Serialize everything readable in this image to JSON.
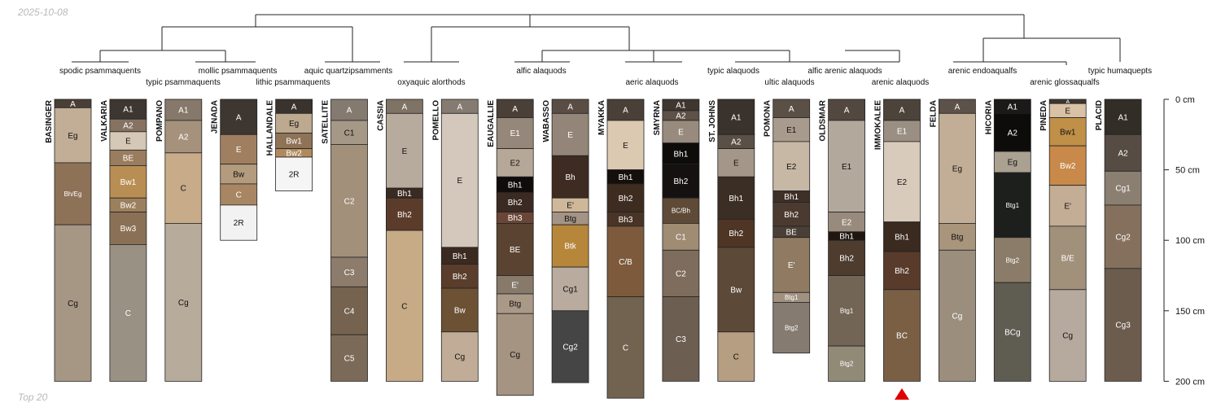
{
  "meta": {
    "date": "2025-10-08",
    "footer": "Top 20"
  },
  "depth_axis": {
    "unit": "cm",
    "max": 200,
    "ticks": [
      "0 cm",
      "50 cm",
      "100 cm",
      "150 cm",
      "200 cm"
    ],
    "tick_values": [
      0,
      50,
      100,
      150,
      200
    ]
  },
  "dendrogram": {
    "labels": [
      "spodic psammaquents",
      "typic psammaquents",
      "mollic psammaquents",
      "lithic psammaquents",
      "aquic quartzipsamments",
      "oxyaquic alorthods",
      "alfic alaquods",
      "aeric alaquods",
      "typic alaquods",
      "ultic alaquods",
      "alfic arenic alaquods",
      "arenic alaquods",
      "arenic endoaqualfs",
      "arenic glossaqualfs",
      "typic humaquepts"
    ]
  },
  "profiles": [
    {
      "name": "BASINGER",
      "horizons": [
        {
          "name": "A",
          "top": 0,
          "bottom": 6,
          "color": "#4a3f36"
        },
        {
          "name": "Eg",
          "top": 6,
          "bottom": 45,
          "color": "#c2ae96"
        },
        {
          "name": "Bh/Eg",
          "top": 45,
          "bottom": 89,
          "color": "#8e7257"
        },
        {
          "name": "Cg",
          "top": 89,
          "bottom": 200,
          "color": "#a69684"
        }
      ]
    },
    {
      "name": "VALKARIA",
      "horizons": [
        {
          "name": "A1",
          "top": 0,
          "bottom": 14,
          "color": "#3e3630"
        },
        {
          "name": "A2",
          "top": 14,
          "bottom": 23,
          "color": "#857261"
        },
        {
          "name": "E",
          "top": 23,
          "bottom": 36,
          "color": "#d6c8b6"
        },
        {
          "name": "BE",
          "top": 36,
          "bottom": 47,
          "color": "#9a7c5e"
        },
        {
          "name": "Bw1",
          "top": 47,
          "bottom": 70,
          "color": "#b98e54"
        },
        {
          "name": "Bw2",
          "top": 70,
          "bottom": 80,
          "color": "#9c7f5c"
        },
        {
          "name": "Bw3",
          "top": 80,
          "bottom": 103,
          "color": "#8a7156"
        },
        {
          "name": "C",
          "top": 103,
          "bottom": 200,
          "color": "#9a9185"
        }
      ]
    },
    {
      "name": "POMPANO",
      "horizons": [
        {
          "name": "A1",
          "top": 0,
          "bottom": 15,
          "color": "#86786a"
        },
        {
          "name": "A2",
          "top": 15,
          "bottom": 38,
          "color": "#a6927c"
        },
        {
          "name": "C",
          "top": 38,
          "bottom": 88,
          "color": "#c8ab88"
        },
        {
          "name": "Cg",
          "top": 88,
          "bottom": 200,
          "color": "#b7ab9c"
        }
      ]
    },
    {
      "name": "JENADA",
      "horizons": [
        {
          "name": "A",
          "top": 0,
          "bottom": 25,
          "color": "#3d3631"
        },
        {
          "name": "E",
          "top": 25,
          "bottom": 46,
          "color": "#a07f60"
        },
        {
          "name": "Bw",
          "top": 46,
          "bottom": 60,
          "color": "#b39b7d"
        },
        {
          "name": "C",
          "top": 60,
          "bottom": 75,
          "color": "#a88663"
        },
        {
          "name": "2R",
          "top": 75,
          "bottom": 100,
          "color": "#f2f2f2"
        }
      ]
    },
    {
      "name": "HALLANDALE",
      "horizons": [
        {
          "name": "A",
          "top": 0,
          "bottom": 10,
          "color": "#3a332d"
        },
        {
          "name": "Eg",
          "top": 10,
          "bottom": 24,
          "color": "#bca98f"
        },
        {
          "name": "Bw1",
          "top": 24,
          "bottom": 35,
          "color": "#8f7357"
        },
        {
          "name": "Bw2",
          "top": 35,
          "bottom": 41,
          "color": "#b08a5d"
        },
        {
          "name": "2R",
          "top": 41,
          "bottom": 65,
          "color": "#f5f5f5"
        }
      ]
    },
    {
      "name": "SATELLITE",
      "horizons": [
        {
          "name": "A",
          "top": 0,
          "bottom": 15,
          "color": "#857a6f"
        },
        {
          "name": "C1",
          "top": 15,
          "bottom": 32,
          "color": "#a59887"
        },
        {
          "name": "C2",
          "top": 32,
          "bottom": 112,
          "color": "#a3907b"
        },
        {
          "name": "C3",
          "top": 112,
          "bottom": 133,
          "color": "#8d7c6b"
        },
        {
          "name": "C4",
          "top": 133,
          "bottom": 167,
          "color": "#75624f"
        },
        {
          "name": "C5",
          "top": 167,
          "bottom": 200,
          "color": "#7c6a58"
        }
      ]
    },
    {
      "name": "CASSIA",
      "horizons": [
        {
          "name": "A",
          "top": 0,
          "bottom": 10,
          "color": "#7f7366"
        },
        {
          "name": "E",
          "top": 10,
          "bottom": 63,
          "color": "#b7ab9e"
        },
        {
          "name": "Bh1",
          "top": 63,
          "bottom": 70,
          "color": "#3a2b22"
        },
        {
          "name": "Bh2",
          "top": 70,
          "bottom": 93,
          "color": "#5b3c2b"
        },
        {
          "name": "C",
          "top": 93,
          "bottom": 200,
          "color": "#c7aa86"
        }
      ]
    },
    {
      "name": "POMELLO",
      "horizons": [
        {
          "name": "A",
          "top": 0,
          "bottom": 10,
          "color": "#857b71"
        },
        {
          "name": "E",
          "top": 10,
          "bottom": 105,
          "color": "#d3c8bb"
        },
        {
          "name": "Bh1",
          "top": 105,
          "bottom": 117,
          "color": "#3b2a20"
        },
        {
          "name": "Bh2",
          "top": 117,
          "bottom": 134,
          "color": "#5a3d2a"
        },
        {
          "name": "Bw",
          "top": 134,
          "bottom": 165,
          "color": "#6c5135"
        },
        {
          "name": "Cg",
          "top": 165,
          "bottom": 200,
          "color": "#c1ad97"
        }
      ]
    },
    {
      "name": "EAUGALLIE",
      "horizons": [
        {
          "name": "A",
          "top": 0,
          "bottom": 13,
          "color": "#4a4038"
        },
        {
          "name": "E1",
          "top": 13,
          "bottom": 35,
          "color": "#958779"
        },
        {
          "name": "E2",
          "top": 35,
          "bottom": 55,
          "color": "#b6a898"
        },
        {
          "name": "Bh1",
          "top": 55,
          "bottom": 66,
          "color": "#0f0c0b"
        },
        {
          "name": "Bh2",
          "top": 66,
          "bottom": 80,
          "color": "#3b2a22"
        },
        {
          "name": "Bh3",
          "top": 80,
          "bottom": 88,
          "color": "#6a4637"
        },
        {
          "name": "BE",
          "top": 88,
          "bottom": 125,
          "color": "#5a4431"
        },
        {
          "name": "E'",
          "top": 125,
          "bottom": 138,
          "color": "#877a6b"
        },
        {
          "name": "Btg",
          "top": 138,
          "bottom": 152,
          "color": "#ab9988"
        },
        {
          "name": "Cg",
          "top": 152,
          "bottom": 210,
          "color": "#a59482"
        }
      ]
    },
    {
      "name": "WABASSO",
      "horizons": [
        {
          "name": "A",
          "top": 0,
          "bottom": 10,
          "color": "#5a4e44"
        },
        {
          "name": "E",
          "top": 10,
          "bottom": 40,
          "color": "#938679"
        },
        {
          "name": "Bh",
          "top": 40,
          "bottom": 70,
          "color": "#3e2b21"
        },
        {
          "name": "E'",
          "top": 70,
          "bottom": 80,
          "color": "#cfb89a"
        },
        {
          "name": "Btg",
          "top": 80,
          "bottom": 89,
          "color": "#a39485"
        },
        {
          "name": "Btk",
          "top": 89,
          "bottom": 119,
          "color": "#b6863b"
        },
        {
          "name": "Cg1",
          "top": 119,
          "bottom": 150,
          "color": "#b9ab9d"
        },
        {
          "name": "Cg2",
          "top": 150,
          "bottom": 201,
          "color": "#454545"
        }
      ]
    },
    {
      "name": "MYAKKA",
      "horizons": [
        {
          "name": "A",
          "top": 0,
          "bottom": 15,
          "color": "#4a4038"
        },
        {
          "name": "E",
          "top": 15,
          "bottom": 50,
          "color": "#dcc9b2"
        },
        {
          "name": "Bh1",
          "top": 50,
          "bottom": 60,
          "color": "#150f0b"
        },
        {
          "name": "Bh2",
          "top": 60,
          "bottom": 80,
          "color": "#3e2c21"
        },
        {
          "name": "Bh3",
          "top": 80,
          "bottom": 90,
          "color": "#4a3427"
        },
        {
          "name": "C/B",
          "top": 90,
          "bottom": 140,
          "color": "#7d5a3c"
        },
        {
          "name": "C",
          "top": 140,
          "bottom": 212,
          "color": "#726250"
        }
      ]
    },
    {
      "name": "SMYRNA",
      "horizons": [
        {
          "name": "A1",
          "top": 0,
          "bottom": 8,
          "color": "#3f3630"
        },
        {
          "name": "A2",
          "top": 8,
          "bottom": 15,
          "color": "#5e5147"
        },
        {
          "name": "E",
          "top": 15,
          "bottom": 31,
          "color": "#988b7d"
        },
        {
          "name": "Bh1",
          "top": 31,
          "bottom": 46,
          "color": "#0e0c0b"
        },
        {
          "name": "Bh2",
          "top": 46,
          "bottom": 70,
          "color": "#141110"
        },
        {
          "name": "BC/Bh",
          "top": 70,
          "bottom": 88,
          "color": "#5e4a37"
        },
        {
          "name": "C1",
          "top": 88,
          "bottom": 107,
          "color": "#a08b73"
        },
        {
          "name": "C2",
          "top": 107,
          "bottom": 140,
          "color": "#7e6d5c"
        },
        {
          "name": "C3",
          "top": 140,
          "bottom": 200,
          "color": "#6c5e51"
        }
      ]
    },
    {
      "name": "ST. JOHNS",
      "horizons": [
        {
          "name": "A1",
          "top": 0,
          "bottom": 25,
          "color": "#3a322c"
        },
        {
          "name": "A2",
          "top": 25,
          "bottom": 35,
          "color": "#5b5046"
        },
        {
          "name": "E",
          "top": 35,
          "bottom": 55,
          "color": "#a4978a"
        },
        {
          "name": "Bh1",
          "top": 55,
          "bottom": 85,
          "color": "#3b2e25"
        },
        {
          "name": "Bh2",
          "top": 85,
          "bottom": 105,
          "color": "#4e3524"
        },
        {
          "name": "Bw",
          "top": 105,
          "bottom": 165,
          "color": "#5c4938"
        },
        {
          "name": "C",
          "top": 165,
          "bottom": 200,
          "color": "#b59e82"
        }
      ]
    },
    {
      "name": "POMONA",
      "horizons": [
        {
          "name": "A",
          "top": 0,
          "bottom": 13,
          "color": "#5b5046"
        },
        {
          "name": "E1",
          "top": 13,
          "bottom": 30,
          "color": "#a89b8d"
        },
        {
          "name": "E2",
          "top": 30,
          "bottom": 65,
          "color": "#c7b8a6"
        },
        {
          "name": "Bh1",
          "top": 65,
          "bottom": 73,
          "color": "#3e2f27"
        },
        {
          "name": "Bh2",
          "top": 73,
          "bottom": 90,
          "color": "#4b3a2f"
        },
        {
          "name": "BE",
          "top": 90,
          "bottom": 98,
          "color": "#4a3f37"
        },
        {
          "name": "E'",
          "top": 98,
          "bottom": 137,
          "color": "#907b62"
        },
        {
          "name": "Btg1",
          "top": 137,
          "bottom": 144,
          "color": "#a09180"
        },
        {
          "name": "Btg2",
          "top": 144,
          "bottom": 180,
          "color": "#867b70"
        }
      ]
    },
    {
      "name": "OLDSMAR",
      "horizons": [
        {
          "name": "A",
          "top": 0,
          "bottom": 15,
          "color": "#524840"
        },
        {
          "name": "E1",
          "top": 15,
          "bottom": 80,
          "color": "#b3a89c"
        },
        {
          "name": "E2",
          "top": 80,
          "bottom": 94,
          "color": "#988a7c"
        },
        {
          "name": "Bh1",
          "top": 94,
          "bottom": 100,
          "color": "#20160f"
        },
        {
          "name": "Bh2",
          "top": 100,
          "bottom": 125,
          "color": "#4e3c2e"
        },
        {
          "name": "Btg1",
          "top": 125,
          "bottom": 175,
          "color": "#736555"
        },
        {
          "name": "Btg2",
          "top": 175,
          "bottom": 200,
          "color": "#918a76"
        }
      ]
    },
    {
      "name": "IMMOKALEE",
      "horizons": [
        {
          "name": "A",
          "top": 0,
          "bottom": 15,
          "color": "#4c433b"
        },
        {
          "name": "E1",
          "top": 15,
          "bottom": 30,
          "color": "#9b8f83"
        },
        {
          "name": "E2",
          "top": 30,
          "bottom": 87,
          "color": "#d9cbbb"
        },
        {
          "name": "Bh1",
          "top": 87,
          "bottom": 108,
          "color": "#3a2a20"
        },
        {
          "name": "Bh2",
          "top": 108,
          "bottom": 135,
          "color": "#583b2b"
        },
        {
          "name": "BC",
          "top": 135,
          "bottom": 200,
          "color": "#7a5f45"
        }
      ]
    },
    {
      "name": "FELDA",
      "horizons": [
        {
          "name": "A",
          "top": 0,
          "bottom": 10,
          "color": "#5d5249"
        },
        {
          "name": "Eg",
          "top": 10,
          "bottom": 88,
          "color": "#c2ae96"
        },
        {
          "name": "Btg",
          "top": 88,
          "bottom": 107,
          "color": "#a8957c"
        },
        {
          "name": "Cg",
          "top": 107,
          "bottom": 200,
          "color": "#9b8e7d"
        }
      ]
    },
    {
      "name": "HICORIA",
      "horizons": [
        {
          "name": "A1",
          "top": 0,
          "bottom": 10,
          "color": "#1c1a18"
        },
        {
          "name": "A2",
          "top": 10,
          "bottom": 37,
          "color": "#0d0c0b"
        },
        {
          "name": "Eg",
          "top": 37,
          "bottom": 52,
          "color": "#aba191"
        },
        {
          "name": "Btg1",
          "top": 52,
          "bottom": 98,
          "color": "#1d1f1c"
        },
        {
          "name": "Btg2",
          "top": 98,
          "bottom": 130,
          "color": "#8a7c68"
        },
        {
          "name": "BCg",
          "top": 130,
          "bottom": 200,
          "color": "#5f5c51"
        }
      ]
    },
    {
      "name": "PINEDA",
      "horizons": [
        {
          "name": "A",
          "top": 0,
          "bottom": 3,
          "color": "#3e3630"
        },
        {
          "name": "E",
          "top": 3,
          "bottom": 13,
          "color": "#d8c1a4"
        },
        {
          "name": "Bw1",
          "top": 13,
          "bottom": 33,
          "color": "#c09049"
        },
        {
          "name": "Bw2",
          "top": 33,
          "bottom": 61,
          "color": "#c8894a"
        },
        {
          "name": "E'",
          "top": 61,
          "bottom": 90,
          "color": "#c3ad95"
        },
        {
          "name": "B/E",
          "top": 90,
          "bottom": 135,
          "color": "#a2917a"
        },
        {
          "name": "Cg",
          "top": 135,
          "bottom": 200,
          "color": "#b6aa9e"
        }
      ]
    },
    {
      "name": "PLACID",
      "horizons": [
        {
          "name": "A1",
          "top": 0,
          "bottom": 25,
          "color": "#332d28"
        },
        {
          "name": "A2",
          "top": 25,
          "bottom": 51,
          "color": "#564c43"
        },
        {
          "name": "Cg1",
          "top": 51,
          "bottom": 75,
          "color": "#8b7f72"
        },
        {
          "name": "Cg2",
          "top": 75,
          "bottom": 120,
          "color": "#84705d"
        },
        {
          "name": "Cg3",
          "top": 120,
          "bottom": 200,
          "color": "#6c5c4d"
        }
      ]
    }
  ],
  "marker": {
    "profile": "IMMOKALEE",
    "label": "",
    "color": "#e00000"
  },
  "colors": {
    "line": "#222222",
    "text": "#111111",
    "tick": "#222222"
  }
}
